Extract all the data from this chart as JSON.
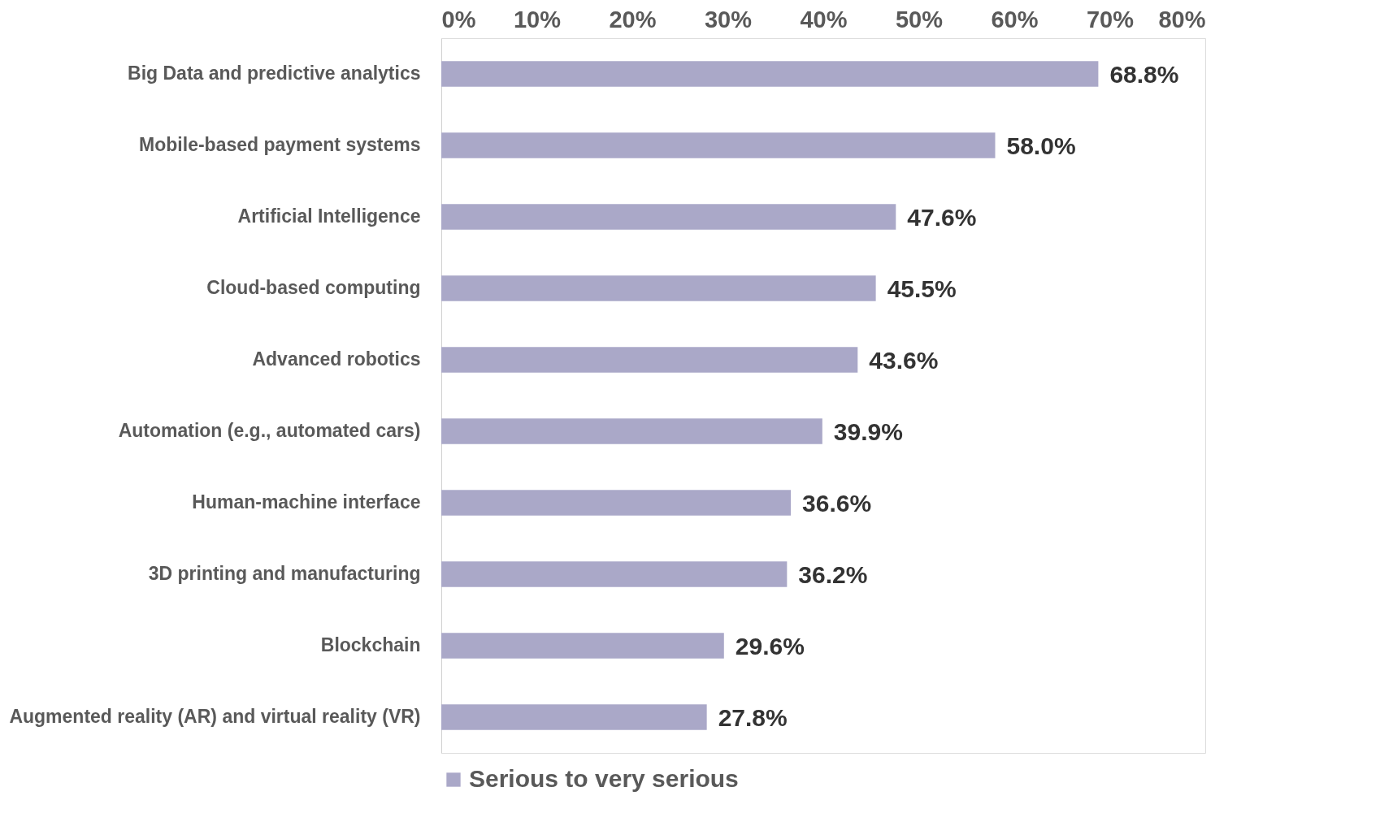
{
  "chart_data": {
    "type": "bar",
    "orientation": "horizontal",
    "categories": [
      "Big Data and predictive analytics",
      "Mobile-based payment systems",
      "Artificial Intelligence",
      "Cloud-based computing",
      "Advanced robotics",
      "Automation (e.g., automated cars)",
      "Human-machine interface",
      "3D printing and manufacturing",
      "Blockchain",
      "Augmented reality (AR) and virtual reality (VR)"
    ],
    "series": [
      {
        "name": "Serious to very serious",
        "color": "#aaa8c8",
        "values": [
          68.8,
          58.0,
          47.6,
          45.5,
          43.6,
          39.9,
          36.6,
          36.2,
          29.6,
          27.8
        ],
        "value_labels": [
          "68.8%",
          "58.0%",
          "47.6%",
          "45.5%",
          "43.6%",
          "39.9%",
          "36.6%",
          "36.2%",
          "29.6%",
          "27.8%"
        ]
      }
    ],
    "xlim": [
      0,
      80
    ],
    "xticks": [
      {
        "value": 0,
        "label": "0%"
      },
      {
        "value": 10,
        "label": "10%"
      },
      {
        "value": 20,
        "label": "20%"
      },
      {
        "value": 30,
        "label": "30%"
      },
      {
        "value": 40,
        "label": "40%"
      },
      {
        "value": 50,
        "label": "50%"
      },
      {
        "value": 60,
        "label": "60%"
      },
      {
        "value": 70,
        "label": "70%"
      },
      {
        "value": 80,
        "label": "80%"
      }
    ],
    "grid": false,
    "legend": "bottom"
  }
}
